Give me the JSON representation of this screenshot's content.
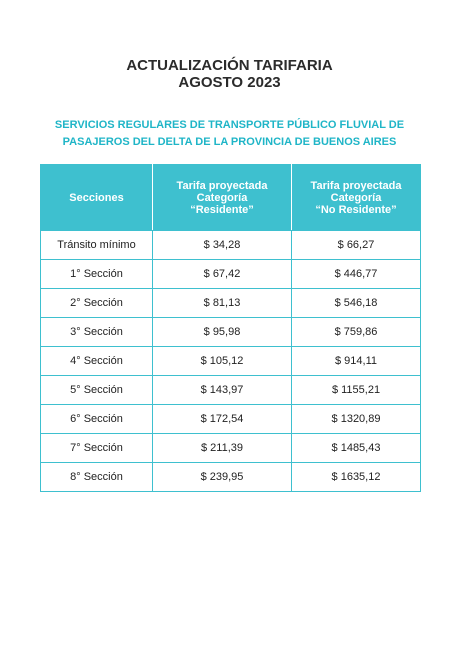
{
  "header": {
    "title": [
      "ACTUALIZACIÓN TARIFARIA",
      "AGOSTO 2023"
    ],
    "subtitle": [
      "SERVICIOS REGULARES DE TRANSPORTE PÚBLICO FLUVIAL DE",
      "PASAJEROS DEL DELTA DE LA PROVINCIA DE BUENOS AIRES"
    ]
  },
  "table": {
    "columns": [
      [
        "Secciones"
      ],
      [
        "Tarifa proyectada",
        "Categoría",
        "“Residente”"
      ],
      [
        "Tarifa proyectada",
        "Categoría",
        "“No Residente”"
      ]
    ],
    "rows": [
      [
        "Tránsito mínimo",
        "$ 34,28",
        "$ 66,27"
      ],
      [
        "1° Sección",
        "$ 67,42",
        "$ 446,77"
      ],
      [
        "2° Sección",
        "$ 81,13",
        "$ 546,18"
      ],
      [
        "3° Sección",
        "$ 95,98",
        "$ 759,86"
      ],
      [
        "4° Sección",
        "$ 105,12",
        "$ 914,11"
      ],
      [
        "5° Sección",
        "$ 143,97",
        "$ 1155,21"
      ],
      [
        "6° Sección",
        "$ 172,54",
        "$ 1320,89"
      ],
      [
        "7° Sección",
        "$ 211,39",
        "$ 1485,43"
      ],
      [
        "8° Sección",
        "$ 239,95",
        "$ 1635,12"
      ]
    ]
  }
}
